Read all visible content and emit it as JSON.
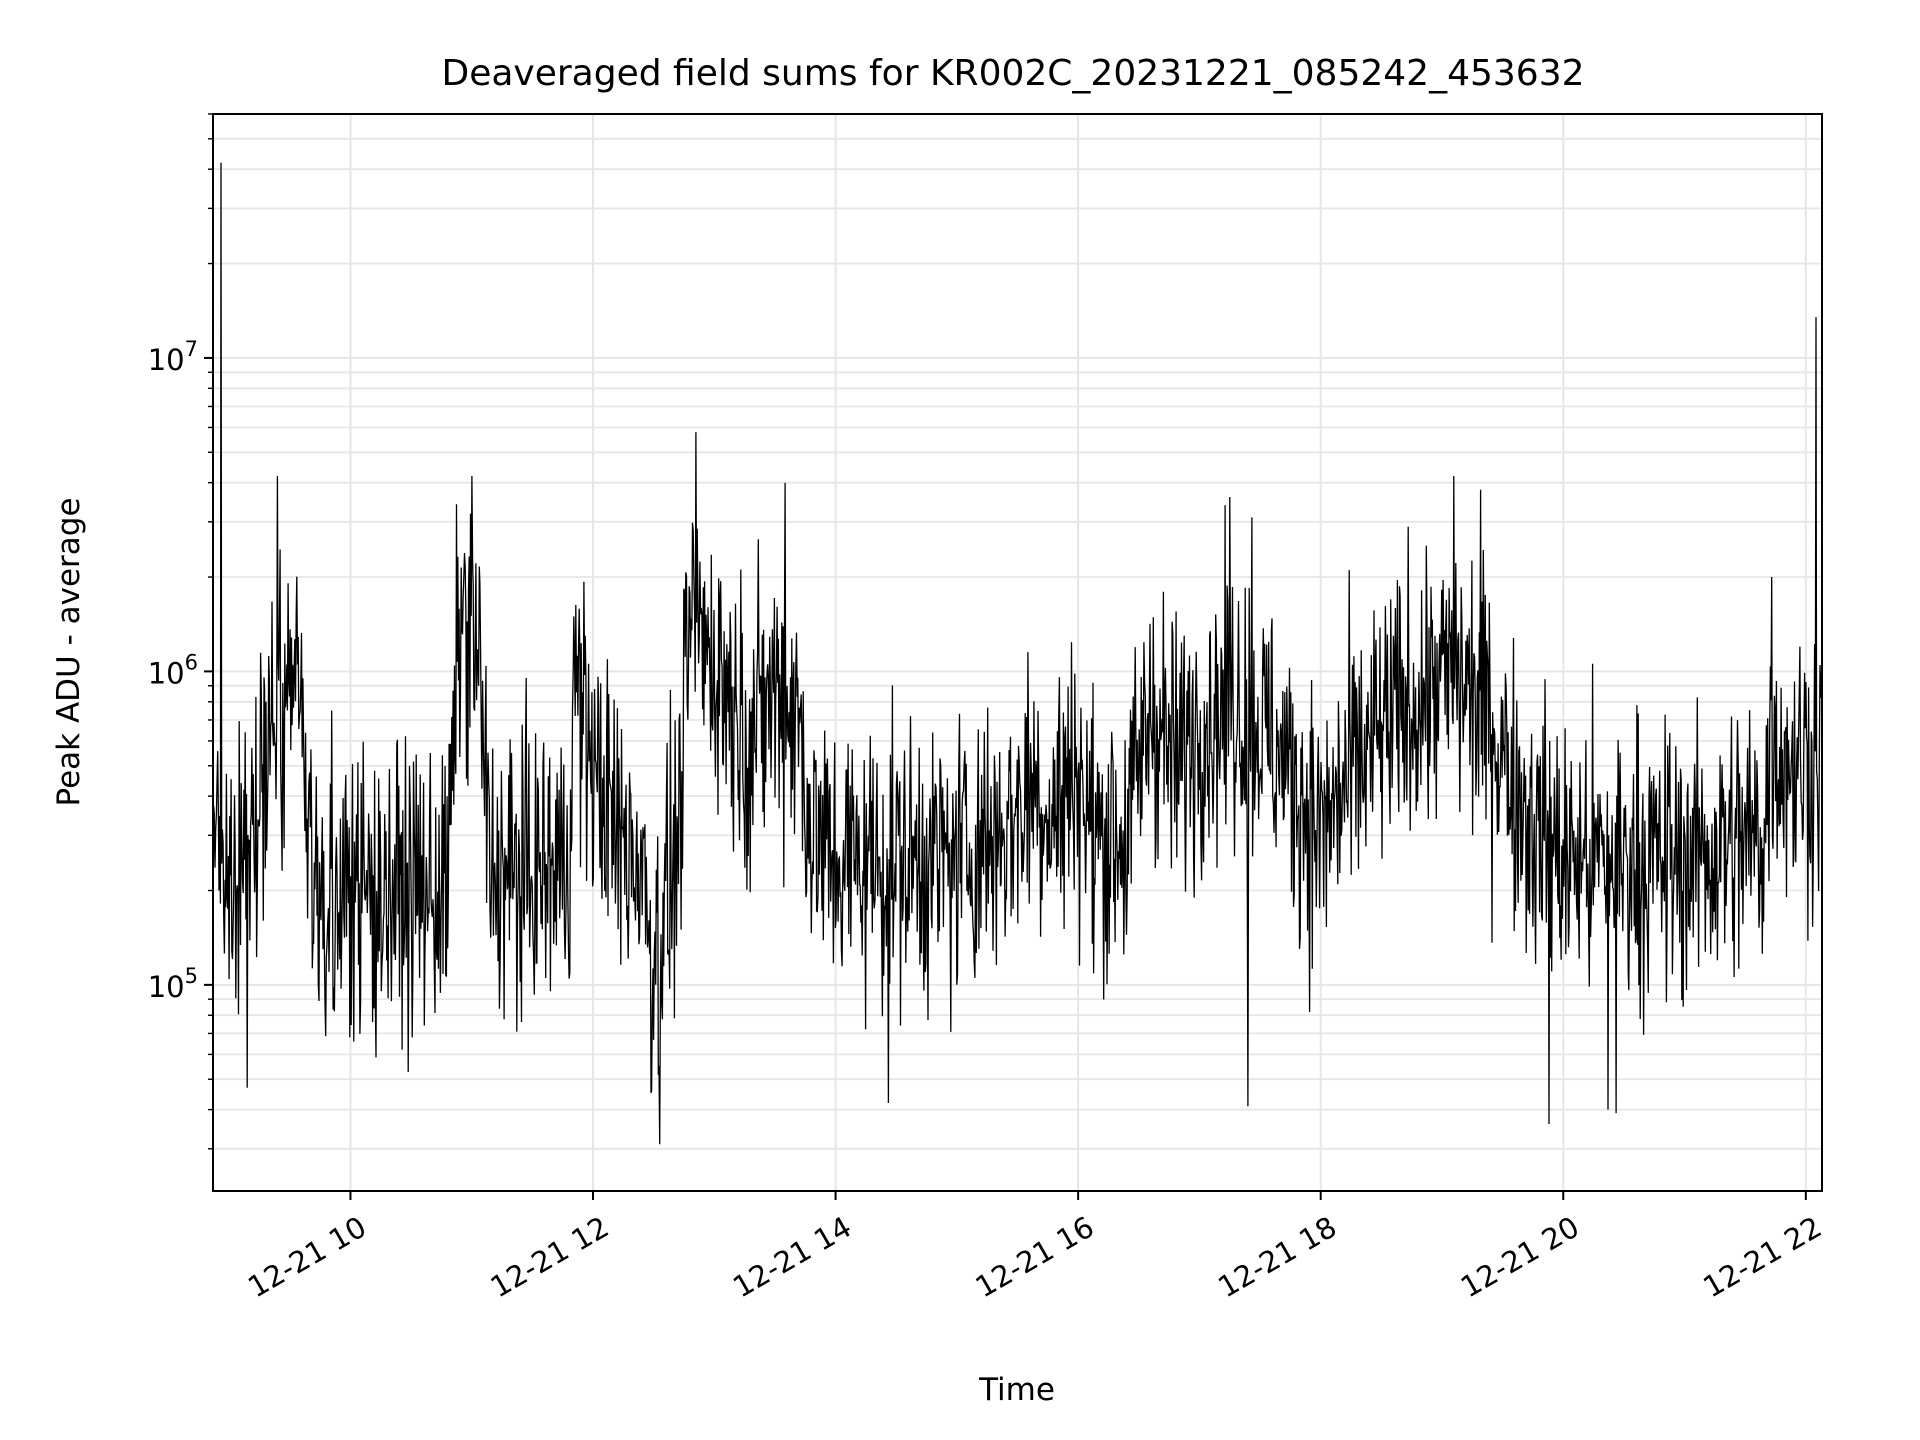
{
  "chart_data": {
    "type": "line",
    "title": "Deaveraged field sums for KR002C_20231221_085242_453632",
    "xlabel": "Time",
    "ylabel": "Peak ADU - average",
    "yscale": "log",
    "grid": true,
    "legend": "none",
    "line_color": "#000000",
    "grid_color": "#e6e6e6",
    "xlim": [
      "2023-12-21 08:52",
      "2023-12-21 22:08"
    ],
    "ylim": [
      22000,
      60000000
    ],
    "x_ticks": [
      "12-21 10",
      "12-21 12",
      "12-21 14",
      "12-21 16",
      "12-21 18",
      "12-21 20",
      "12-21 22"
    ],
    "y_ticks": [
      {
        "base": "10",
        "exp": "5",
        "value": 100000
      },
      {
        "base": "10",
        "exp": "6",
        "value": 1000000
      },
      {
        "base": "10",
        "exp": "7",
        "value": 10000000
      }
    ],
    "series": [
      {
        "x_start": "2023-12-21 08:52",
        "x_end": "2023-12-21 22:08",
        "sampling": "approx. 1 value every 20 s; envelope keyframes below (hours, level)",
        "baseline_keyframes": [
          [
            8.87,
            250000
          ],
          [
            9.0,
            200000
          ],
          [
            9.2,
            300000
          ],
          [
            9.35,
            700000
          ],
          [
            9.6,
            800000
          ],
          [
            9.65,
            220000
          ],
          [
            10.0,
            200000
          ],
          [
            10.8,
            200000
          ],
          [
            10.9,
            1500000
          ],
          [
            11.05,
            1200000
          ],
          [
            11.15,
            230000
          ],
          [
            11.5,
            220000
          ],
          [
            11.8,
            250000
          ],
          [
            11.85,
            1000000
          ],
          [
            12.0,
            500000
          ],
          [
            12.2,
            300000
          ],
          [
            12.4,
            250000
          ],
          [
            12.5,
            120000
          ],
          [
            12.7,
            280000
          ],
          [
            12.8,
            1400000
          ],
          [
            13.0,
            1100000
          ],
          [
            13.3,
            600000
          ],
          [
            13.5,
            900000
          ],
          [
            13.7,
            700000
          ],
          [
            13.8,
            300000
          ],
          [
            14.0,
            250000
          ],
          [
            15.0,
            250000
          ],
          [
            15.3,
            300000
          ],
          [
            15.5,
            350000
          ],
          [
            15.6,
            450000
          ],
          [
            15.8,
            350000
          ],
          [
            16.0,
            500000
          ],
          [
            16.1,
            300000
          ],
          [
            16.4,
            300000
          ],
          [
            16.6,
            800000
          ],
          [
            16.8,
            500000
          ],
          [
            17.0,
            700000
          ],
          [
            17.3,
            800000
          ],
          [
            17.6,
            600000
          ],
          [
            18.0,
            300000
          ],
          [
            18.3,
            500000
          ],
          [
            18.6,
            700000
          ],
          [
            19.1,
            1000000
          ],
          [
            19.4,
            700000
          ],
          [
            19.7,
            350000
          ],
          [
            20.0,
            250000
          ],
          [
            21.0,
            250000
          ],
          [
            21.65,
            300000
          ],
          [
            21.72,
            600000
          ],
          [
            21.9,
            500000
          ],
          [
            22.13,
            550000
          ]
        ],
        "peaks": [
          {
            "x": "2023-12-21 08:56",
            "y": 42000000
          },
          {
            "x": "2023-12-21 09:24",
            "y": 4200000
          },
          {
            "x": "2023-12-21 11:00",
            "y": 4200000
          },
          {
            "x": "2023-12-21 12:51",
            "y": 5800000
          },
          {
            "x": "2023-12-21 13:35",
            "y": 4000000
          },
          {
            "x": "2023-12-21 17:15",
            "y": 3600000
          },
          {
            "x": "2023-12-21 17:26",
            "y": 3100000
          },
          {
            "x": "2023-12-21 19:06",
            "y": 4200000
          },
          {
            "x": "2023-12-21 19:19",
            "y": 3800000
          },
          {
            "x": "2023-12-21 21:43",
            "y": 2000000
          },
          {
            "x": "2023-12-21 22:05",
            "y": 13500000
          }
        ],
        "troughs": [
          {
            "x": "2023-12-21 09:09",
            "y": 47000
          },
          {
            "x": "2023-12-21 12:29",
            "y": 46000
          },
          {
            "x": "2023-12-21 12:33",
            "y": 31000
          },
          {
            "x": "2023-12-21 14:26",
            "y": 42000
          },
          {
            "x": "2023-12-21 17:24",
            "y": 41000
          },
          {
            "x": "2023-12-21 19:53",
            "y": 36000
          },
          {
            "x": "2023-12-21 20:22",
            "y": 40000
          },
          {
            "x": "2023-12-21 20:26",
            "y": 39000
          }
        ]
      }
    ]
  }
}
